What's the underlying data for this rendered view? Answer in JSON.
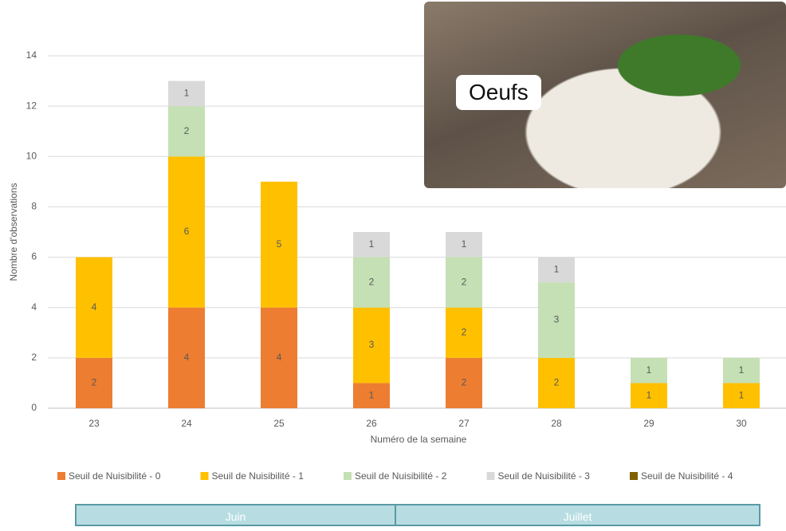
{
  "chart_data": {
    "type": "stacked_bar",
    "x_label": "Numéro de la semaine",
    "y_label": "Nombre d'observations",
    "categories": [
      "23",
      "24",
      "25",
      "26",
      "27",
      "28",
      "29",
      "30"
    ],
    "series": [
      {
        "name": "Seuil de Nuisibilité - 0",
        "color": "#ed7d31",
        "values": [
          2,
          4,
          4,
          1,
          2,
          null,
          null,
          null
        ]
      },
      {
        "name": "Seuil de Nuisibilité - 1",
        "color": "#ffc000",
        "values": [
          4,
          6,
          5,
          3,
          2,
          2,
          1,
          1
        ]
      },
      {
        "name": "Seuil de Nuisibilité - 2",
        "color": "#c5e0b4",
        "values": [
          null,
          2,
          null,
          2,
          2,
          3,
          1,
          1
        ]
      },
      {
        "name": "Seuil de Nuisibilité - 3",
        "color": "#d9d9d9",
        "values": [
          null,
          1,
          null,
          1,
          1,
          1,
          null,
          null
        ]
      },
      {
        "name": "Seuil de Nuisibilité - 4",
        "color": "#7f6000",
        "values": [
          null,
          null,
          null,
          null,
          null,
          null,
          null,
          null
        ]
      }
    ],
    "ylim": [
      0,
      14
    ],
    "yticks": [
      0,
      2,
      4,
      6,
      8,
      10,
      12,
      14
    ],
    "grid": true
  },
  "photo_label": "Oeufs",
  "months": [
    "Juin",
    "Juillet"
  ]
}
